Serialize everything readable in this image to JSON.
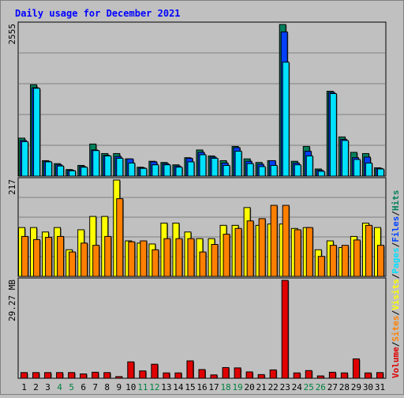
{
  "title": "Daily usage for December 2021",
  "colors": {
    "hits": "#00805c",
    "files": "#0040ff",
    "pages": "#00e0ff",
    "visits": "#ffff00",
    "sites": "#ff8000",
    "volume": "#e00000",
    "title": "#0000ff",
    "weekend": "#008040",
    "day": "#000000",
    "panel_bg": "#c0c0c0",
    "grid": "#808080"
  },
  "legend": {
    "hits": "Hits",
    "files": "Files",
    "pages": "Pages",
    "visits": "Visits",
    "sites": "Sites",
    "volume": "Volume",
    "sep": "/"
  },
  "chart_data": {
    "type": "bar",
    "title": "Daily usage for December 2021",
    "categories": [
      "1",
      "2",
      "3",
      "4",
      "5",
      "6",
      "7",
      "8",
      "9",
      "10",
      "11",
      "12",
      "13",
      "14",
      "15",
      "16",
      "17",
      "18",
      "19",
      "20",
      "21",
      "22",
      "23",
      "24",
      "25",
      "26",
      "27",
      "28",
      "29",
      "30",
      "31"
    ],
    "weekend_days": [
      "4",
      "5",
      "11",
      "12",
      "18",
      "19",
      "25",
      "26"
    ],
    "panels": [
      {
        "name": "hits-files-pages",
        "axis_max_label": "2555",
        "ylim": [
          0,
          2555
        ],
        "series": [
          {
            "name": "Hits",
            "values": [
              640,
              1540,
              260,
              210,
              110,
              180,
              540,
              380,
              380,
              290,
              150,
              250,
              230,
              190,
              310,
              440,
              340,
              260,
              500,
              290,
              230,
              260,
              2555,
              250,
              500,
              120,
              1430,
              660,
              400,
              380,
              140
            ]
          },
          {
            "name": "Files",
            "values": [
              600,
              1490,
              250,
              190,
              100,
              160,
              440,
              350,
              330,
              290,
              140,
              240,
              210,
              170,
              300,
              400,
              320,
              220,
              480,
              250,
              200,
              260,
              2430,
              220,
              420,
              100,
              1410,
              620,
              310,
              320,
              130
            ]
          },
          {
            "name": "Pages",
            "values": [
              580,
              1480,
              240,
              170,
              90,
              150,
              430,
              340,
              300,
              220,
              130,
              190,
              190,
              150,
              240,
              360,
              300,
              180,
              420,
              210,
              160,
              180,
              1920,
              190,
              340,
              80,
              1390,
              600,
              280,
              220,
              120
            ]
          }
        ]
      },
      {
        "name": "visits-sites",
        "axis_max_label": "217",
        "ylim": [
          0,
          217
        ],
        "series": [
          {
            "name": "Visits",
            "values": [
              110,
              110,
              100,
              110,
              60,
              105,
              135,
              135,
              217,
              80,
              75,
              73,
              120,
              120,
              100,
              85,
              85,
              115,
              115,
              155,
              115,
              118,
              118,
              108,
              110,
              60,
              80,
              65,
              90,
              120,
              110
            ]
          },
          {
            "name": "Sites",
            "values": [
              90,
              83,
              88,
              90,
              55,
              75,
              70,
              90,
              175,
              78,
              80,
              60,
              85,
              85,
              85,
              55,
              72,
              95,
              108,
              125,
              130,
              160,
              160,
              105,
              110,
              45,
              70,
              70,
              82,
              115,
              70
            ]
          }
        ]
      },
      {
        "name": "volume",
        "axis_max_label": "29.27 MB",
        "ylim": [
          0,
          29.27
        ],
        "series": [
          {
            "name": "Volume",
            "values": [
              1.7,
              1.7,
              1.7,
              1.7,
              1.7,
              1.3,
              1.8,
              1.7,
              0.5,
              4.9,
              2.2,
              4.2,
              1.6,
              1.6,
              5.2,
              2.6,
              1.0,
              3.2,
              3.1,
              1.9,
              1.1,
              2.5,
              29.27,
              1.6,
              2.3,
              0.7,
              1.8,
              1.6,
              5.8,
              1.6,
              1.7
            ]
          }
        ]
      }
    ]
  }
}
